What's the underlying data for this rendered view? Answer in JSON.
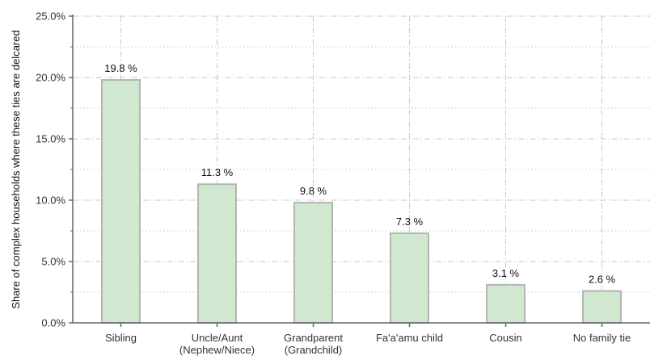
{
  "chart_data": {
    "type": "bar",
    "title": "",
    "xlabel": "",
    "ylabel": "Share of complex households where these ties are delcared",
    "ylim": [
      0,
      25
    ],
    "y_ticks": [
      "0.0%",
      "5.0%",
      "10.0%",
      "15.0%",
      "20.0%",
      "25.0%"
    ],
    "y_tick_values": [
      0,
      5,
      10,
      15,
      20,
      25
    ],
    "y_minor_tick_values": [
      2.5,
      7.5,
      12.5,
      17.5,
      22.5
    ],
    "categories": [
      [
        "Sibling"
      ],
      [
        "Uncle/Aunt",
        "(Nephew/Niece)"
      ],
      [
        "Grandparent",
        "(Grandchild)"
      ],
      [
        "Fa'a'amu child"
      ],
      [
        "Cousin"
      ],
      [
        "No family tie"
      ]
    ],
    "values": [
      19.8,
      11.3,
      9.8,
      7.3,
      3.1,
      2.6
    ],
    "data_labels": [
      "19.8 %",
      "11.3 %",
      "9.8 %",
      "7.3 %",
      "3.1 %",
      "2.6 %"
    ],
    "grid": true,
    "legend": "none",
    "colors": {
      "bar_fill": "#cfe8cf",
      "bar_stroke": "#b5b5b5",
      "grid": "#c8c8c8",
      "axis": "#666666"
    }
  }
}
